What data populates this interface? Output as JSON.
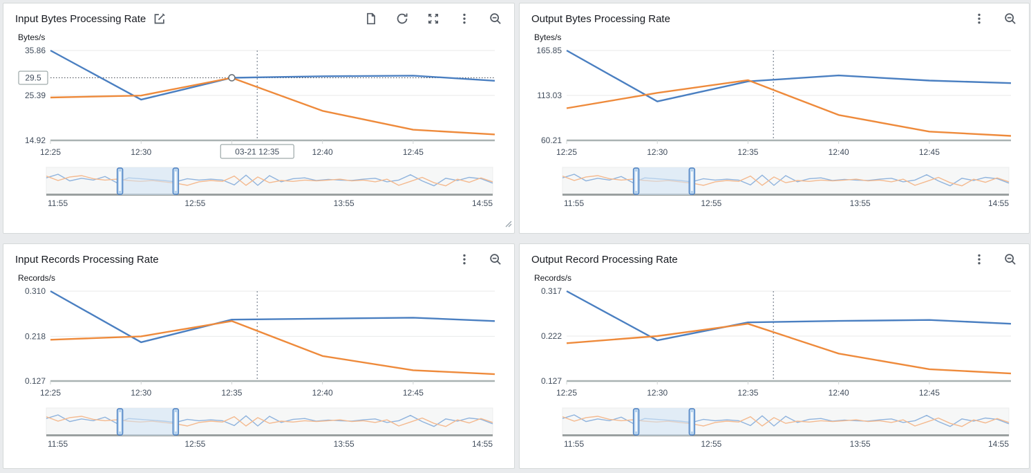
{
  "colors": {
    "blue": "#4a7fc1",
    "orange": "#ee8a3b",
    "brush_blue": "#8fb3dd",
    "brush_orange": "#f4b98e",
    "icon": "#545b64",
    "selection_fill": "#cfe3f5",
    "handle_fill": "#b9d4ee",
    "handle_stroke": "#4a7fc1",
    "grid": "#e8eaea",
    "axis": "#a9b2b2",
    "crosshair": "#5f6b7a"
  },
  "icons": {
    "title_edit": "edit-icon",
    "panel1_toolbar": [
      "export-document-icon",
      "refresh-icon",
      "expand-icon",
      "kebab-menu-icon",
      "zoom-out-icon"
    ],
    "other_toolbars": [
      "kebab-menu-icon",
      "zoom-out-icon"
    ],
    "panel1_corner": "resize-handle-icon"
  },
  "chart_data": [
    {
      "type": "line",
      "title": "Input Bytes Processing Rate",
      "ylabel": "Bytes/s",
      "x": [
        0,
        5,
        10,
        15,
        20,
        24.5
      ],
      "x_max": 24.5,
      "xticks": [
        {
          "label": "12:25",
          "t": 0
        },
        {
          "label": "12:30",
          "t": 5
        },
        {
          "label": "12:35",
          "t": 10
        },
        {
          "label": "12:40",
          "t": 15
        },
        {
          "label": "12:45",
          "t": 20
        }
      ],
      "yticks": [
        {
          "label": "35.86",
          "value": 35.86
        },
        {
          "label": "25.39",
          "value": 25.39
        },
        {
          "label": "14.92",
          "value": 14.92
        }
      ],
      "ylim": [
        14.92,
        35.86
      ],
      "series": [
        {
          "name": "blue",
          "values": [
            35.86,
            24.4,
            29.5,
            29.85,
            30.0,
            28.8
          ]
        },
        {
          "name": "orange",
          "values": [
            24.9,
            25.35,
            29.5,
            21.8,
            17.4,
            16.3
          ]
        }
      ],
      "crosshair_t": 11.4,
      "hover": {
        "t": 10,
        "value": 29.5,
        "y_label": "29.5",
        "x_label": "03-21 12:35",
        "hide_xtick": "12:35"
      }
    },
    {
      "type": "line",
      "title": "Output Bytes Processing Rate",
      "ylabel": "Bytes/s",
      "x": [
        0,
        5,
        10,
        15,
        20,
        24.5
      ],
      "x_max": 24.5,
      "xticks": [
        {
          "label": "12:25",
          "t": 0
        },
        {
          "label": "12:30",
          "t": 5
        },
        {
          "label": "12:35",
          "t": 10
        },
        {
          "label": "12:40",
          "t": 15
        },
        {
          "label": "12:45",
          "t": 20
        }
      ],
      "yticks": [
        {
          "label": "165.85",
          "value": 165.85
        },
        {
          "label": "113.03",
          "value": 113.03
        },
        {
          "label": "60.21",
          "value": 60.21
        }
      ],
      "ylim": [
        60.21,
        165.85
      ],
      "series": [
        {
          "name": "blue",
          "values": [
            165.85,
            106,
            129.5,
            136.5,
            130.5,
            127.5
          ]
        },
        {
          "name": "orange",
          "values": [
            98,
            116,
            131,
            90,
            70.5,
            65.5
          ]
        }
      ],
      "crosshair_t": 11.4
    },
    {
      "type": "line",
      "title": "Input Records Processing Rate",
      "ylabel": "Records/s",
      "x": [
        0,
        5,
        10,
        15,
        20,
        24.5
      ],
      "x_max": 24.5,
      "xticks": [
        {
          "label": "12:25",
          "t": 0
        },
        {
          "label": "12:30",
          "t": 5
        },
        {
          "label": "12:35",
          "t": 10
        },
        {
          "label": "12:40",
          "t": 15
        },
        {
          "label": "12:45",
          "t": 20
        }
      ],
      "yticks": [
        {
          "label": "0.310",
          "value": 0.31
        },
        {
          "label": "0.218",
          "value": 0.218
        },
        {
          "label": "0.127",
          "value": 0.127
        }
      ],
      "ylim": [
        0.127,
        0.31
      ],
      "series": [
        {
          "name": "blue",
          "values": [
            0.31,
            0.206,
            0.252,
            0.254,
            0.256,
            0.249
          ]
        },
        {
          "name": "orange",
          "values": [
            0.211,
            0.218,
            0.249,
            0.178,
            0.149,
            0.141
          ]
        }
      ],
      "crosshair_t": 11.4
    },
    {
      "type": "line",
      "title": "Output Record Processing Rate",
      "ylabel": "Records/s",
      "x": [
        0,
        5,
        10,
        15,
        20,
        24.5
      ],
      "x_max": 24.5,
      "xticks": [
        {
          "label": "12:25",
          "t": 0
        },
        {
          "label": "12:30",
          "t": 5
        },
        {
          "label": "12:35",
          "t": 10
        },
        {
          "label": "12:40",
          "t": 15
        },
        {
          "label": "12:45",
          "t": 20
        }
      ],
      "yticks": [
        {
          "label": "0.317",
          "value": 0.317
        },
        {
          "label": "0.222",
          "value": 0.222
        },
        {
          "label": "0.127",
          "value": 0.127
        }
      ],
      "ylim": [
        0.127,
        0.317
      ],
      "series": [
        {
          "name": "blue",
          "values": [
            0.317,
            0.213,
            0.251,
            0.254,
            0.256,
            0.248
          ]
        },
        {
          "name": "orange",
          "values": [
            0.207,
            0.222,
            0.248,
            0.185,
            0.152,
            0.143
          ]
        }
      ],
      "crosshair_t": 11.4
    }
  ],
  "brush": {
    "xlabels": [
      "11:55",
      "12:55",
      "13:55",
      "14:55"
    ],
    "selection": [
      0.165,
      0.29
    ],
    "series": [
      {
        "name": "brush_blue",
        "values": [
          0.62,
          0.78,
          0.48,
          0.6,
          0.52,
          0.68,
          0.4,
          0.62,
          0.58,
          0.54,
          0.5,
          0.44,
          0.58,
          0.52,
          0.56,
          0.52,
          0.3,
          0.74,
          0.28,
          0.72,
          0.44,
          0.58,
          0.62,
          0.5,
          0.55,
          0.52,
          0.5,
          0.56,
          0.6,
          0.44,
          0.52,
          0.76,
          0.48,
          0.26,
          0.6,
          0.5,
          0.64,
          0.58,
          0.38
        ]
      },
      {
        "name": "brush_orange",
        "values": [
          0.7,
          0.5,
          0.66,
          0.72,
          0.58,
          0.52,
          0.56,
          0.5,
          0.46,
          0.5,
          0.44,
          0.38,
          0.28,
          0.44,
          0.5,
          0.46,
          0.7,
          0.28,
          0.66,
          0.4,
          0.5,
          0.46,
          0.52,
          0.48,
          0.52,
          0.56,
          0.48,
          0.52,
          0.44,
          0.56,
          0.28,
          0.46,
          0.64,
          0.4,
          0.26,
          0.56,
          0.42,
          0.62,
          0.44
        ]
      }
    ]
  }
}
